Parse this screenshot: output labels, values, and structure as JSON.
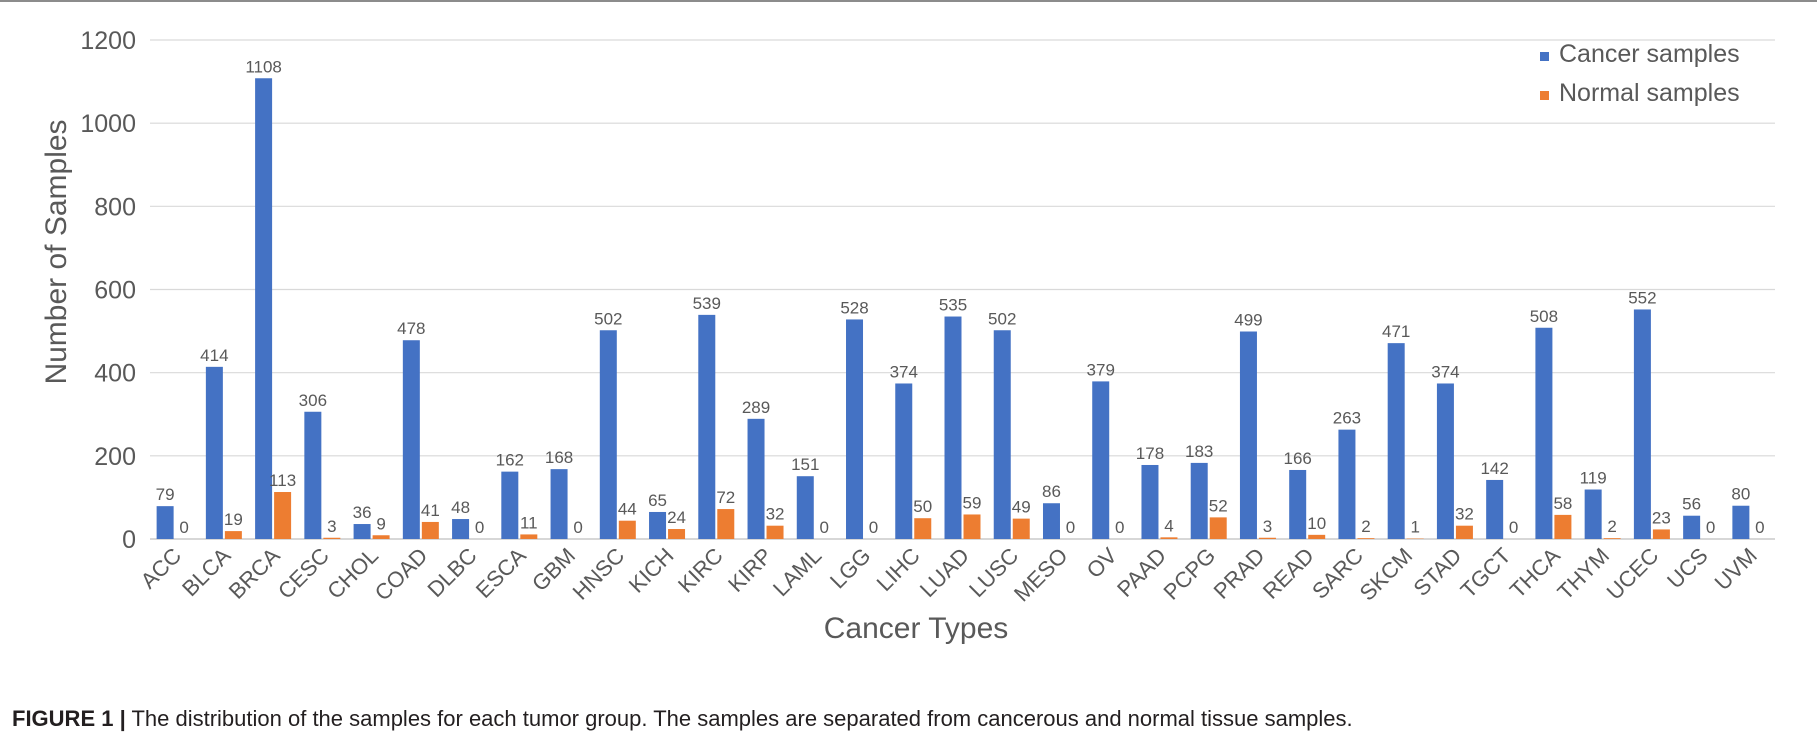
{
  "chart_data": {
    "type": "bar",
    "categories": [
      "ACC",
      "BLCA",
      "BRCA",
      "CESC",
      "CHOL",
      "COAD",
      "DLBC",
      "ESCA",
      "GBM",
      "HNSC",
      "KICH",
      "KIRC",
      "KIRP",
      "LAML",
      "LGG",
      "LIHC",
      "LUAD",
      "LUSC",
      "MESO",
      "OV",
      "PAAD",
      "PCPG",
      "PRAD",
      "READ",
      "SARC",
      "SKCM",
      "STAD",
      "TGCT",
      "THCA",
      "THYM",
      "UCEC",
      "UCS",
      "UVM"
    ],
    "series": [
      {
        "name": "Cancer samples",
        "color": "#4472c4",
        "values": [
          79,
          414,
          1108,
          306,
          36,
          478,
          48,
          162,
          168,
          502,
          65,
          539,
          289,
          151,
          528,
          374,
          535,
          502,
          86,
          379,
          178,
          183,
          499,
          166,
          263,
          471,
          374,
          142,
          508,
          119,
          552,
          56,
          80
        ]
      },
      {
        "name": "Normal samples",
        "color": "#ed7d31",
        "values": [
          0,
          19,
          113,
          3,
          9,
          41,
          0,
          11,
          0,
          44,
          24,
          72,
          32,
          0,
          0,
          50,
          59,
          49,
          0,
          0,
          4,
          52,
          3,
          10,
          2,
          1,
          32,
          0,
          58,
          2,
          23,
          0,
          0
        ]
      }
    ],
    "xlabel": "Cancer Types",
    "ylabel": "Number of Samples",
    "ylim": [
      0,
      1200
    ],
    "yticks": [
      0,
      200,
      400,
      600,
      800,
      1000,
      1200
    ],
    "grid": true,
    "legend": "top-right"
  },
  "caption": {
    "label": "FIGURE 1 |",
    "text": "The distribution of the samples for each tumor group. The samples are separated from cancerous and normal tissue samples."
  }
}
